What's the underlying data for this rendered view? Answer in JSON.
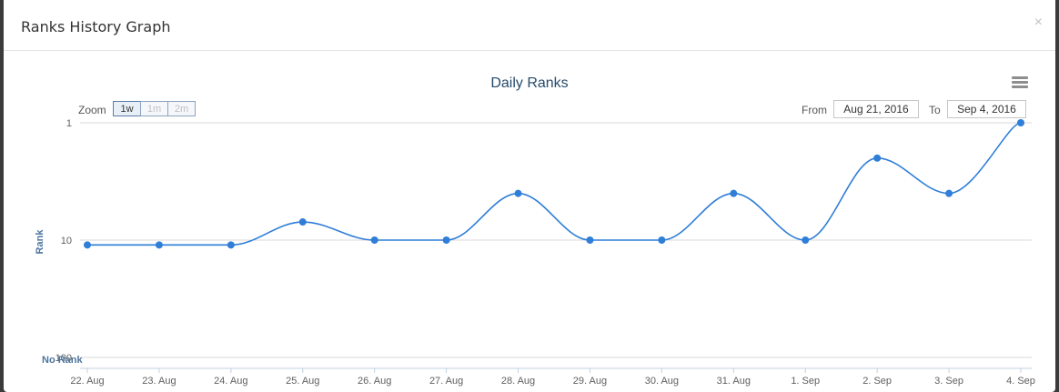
{
  "modal": {
    "title": "Ranks History Graph",
    "close_label": "×"
  },
  "toolbar": {
    "zoom_label": "Zoom",
    "zoom_options": [
      "1w",
      "1m",
      "2m"
    ],
    "zoom_selected": "1w",
    "from_label": "From",
    "from_value": "Aug 21, 2016",
    "to_label": "To",
    "to_value": "Sep 4, 2016",
    "menu_icon": "hamburger-menu-icon"
  },
  "chart_data": {
    "type": "line",
    "title": "Daily Ranks",
    "xlabel": "",
    "ylabel": "Rank",
    "y_scale": "log",
    "y_reversed": true,
    "ylim": [
      1,
      100
    ],
    "y_ticks": [
      {
        "value": 1,
        "label": "1"
      },
      {
        "value": 10,
        "label": "10"
      },
      {
        "value": 100,
        "label": "100"
      }
    ],
    "no_rank_label": "No Rank",
    "categories": [
      "22. Aug",
      "23. Aug",
      "24. Aug",
      "25. Aug",
      "26. Aug",
      "27. Aug",
      "28. Aug",
      "29. Aug",
      "30. Aug",
      "31. Aug",
      "1. Sep",
      "2. Sep",
      "3. Sep",
      "4. Sep"
    ],
    "series": [
      {
        "values": [
          11,
          11,
          11,
          7,
          10,
          10,
          4,
          10,
          10,
          4,
          10,
          2,
          4,
          1
        ],
        "color": "#2f7ed8"
      }
    ],
    "grid": true,
    "legend": "none"
  }
}
